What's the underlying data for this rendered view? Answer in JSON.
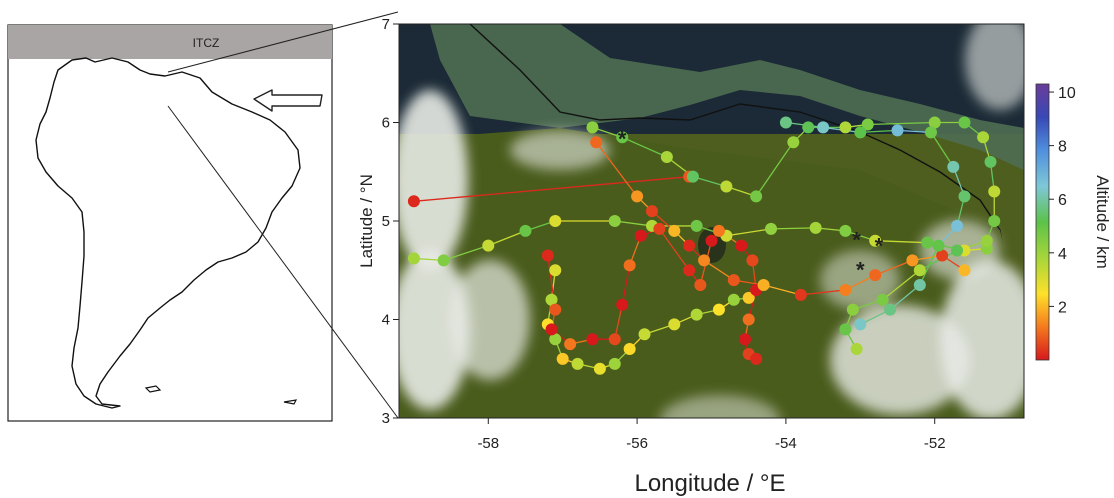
{
  "inset": {
    "band_label": "ITCZ",
    "band_color": "#aaa5a5"
  },
  "map": {
    "x_ticks": [
      {
        "value": -58,
        "label": "-58"
      },
      {
        "value": -56,
        "label": "-56"
      },
      {
        "value": -54,
        "label": "-54"
      },
      {
        "value": -52,
        "label": "-52"
      }
    ],
    "y_ticks": [
      {
        "value": 3,
        "label": "3"
      },
      {
        "value": 4,
        "label": "4"
      },
      {
        "value": 5,
        "label": "5"
      },
      {
        "value": 6,
        "label": "6"
      },
      {
        "value": 7,
        "label": "7"
      }
    ],
    "xlim": [
      -59.2,
      -50.8
    ],
    "ylim": [
      3.0,
      7.0
    ],
    "xlabel": "Longitude / °E",
    "ylabel": "Latitude / °N"
  },
  "colorbar": {
    "label": "Altitude / km",
    "ticks": [
      {
        "value": 2,
        "label": "2"
      },
      {
        "value": 4,
        "label": "4"
      },
      {
        "value": 6,
        "label": "6"
      },
      {
        "value": 8,
        "label": "8"
      },
      {
        "value": 10,
        "label": "10"
      }
    ],
    "range": [
      0,
      10.3
    ],
    "colors": [
      "#d7191c",
      "#f57a1e",
      "#fde02a",
      "#a6d63a",
      "#5cc24a",
      "#7fc7d8",
      "#4f8fdd",
      "#3848b5",
      "#6a3d9a"
    ]
  },
  "chart_data": {
    "type": "scatter",
    "tracks": [
      {
        "points": [
          [
            -59.0,
            5.2
          ],
          [
            -55.3,
            5.45
          ]
        ]
      },
      {
        "points": [
          [
            -59.0,
            4.62
          ],
          [
            -58.6,
            4.6
          ],
          [
            -58.0,
            4.75
          ],
          [
            -57.5,
            4.9
          ],
          [
            -57.1,
            5.0
          ],
          [
            -56.3,
            5.0
          ],
          [
            -55.8,
            4.95
          ],
          [
            -55.2,
            4.95
          ],
          [
            -54.8,
            4.85
          ],
          [
            -54.2,
            4.92
          ],
          [
            -53.6,
            4.93
          ],
          [
            -53.2,
            4.9
          ],
          [
            -52.8,
            4.8
          ],
          [
            -52.1,
            4.78
          ],
          [
            -51.6,
            4.7
          ],
          [
            -51.3,
            4.72
          ]
        ]
      },
      {
        "points": [
          [
            -57.1,
            4.5
          ],
          [
            -57.15,
            4.2
          ],
          [
            -57.2,
            3.95
          ],
          [
            -57.1,
            3.8
          ],
          [
            -57.0,
            3.6
          ],
          [
            -56.8,
            3.55
          ],
          [
            -56.5,
            3.5
          ],
          [
            -56.3,
            3.55
          ],
          [
            -56.1,
            3.7
          ],
          [
            -55.9,
            3.85
          ],
          [
            -55.5,
            3.95
          ],
          [
            -55.2,
            4.05
          ],
          [
            -54.9,
            4.1
          ],
          [
            -54.7,
            4.2
          ],
          [
            -54.5,
            4.22
          ]
        ]
      },
      {
        "points": [
          [
            -57.2,
            4.65
          ],
          [
            -57.1,
            4.1
          ],
          [
            -57.15,
            3.9
          ],
          [
            -56.9,
            3.75
          ],
          [
            -56.6,
            3.8
          ],
          [
            -56.3,
            3.8
          ],
          [
            -56.2,
            4.15
          ],
          [
            -56.1,
            4.55
          ],
          [
            -55.95,
            4.85
          ],
          [
            -55.7,
            4.92
          ],
          [
            -55.3,
            4.5
          ],
          [
            -55.15,
            4.35
          ],
          [
            -55.0,
            4.8
          ],
          [
            -54.9,
            4.9
          ],
          [
            -54.6,
            4.75
          ],
          [
            -54.45,
            4.6
          ],
          [
            -54.4,
            4.3
          ],
          [
            -54.5,
            4.0
          ],
          [
            -54.55,
            3.8
          ],
          [
            -54.5,
            3.65
          ],
          [
            -54.4,
            3.6
          ]
        ]
      },
      {
        "points": [
          [
            -56.6,
            5.95
          ],
          [
            -56.2,
            5.85
          ],
          [
            -55.6,
            5.65
          ],
          [
            -55.25,
            5.45
          ],
          [
            -54.8,
            5.35
          ],
          [
            -54.4,
            5.25
          ],
          [
            -53.9,
            5.8
          ],
          [
            -53.7,
            5.95
          ],
          [
            -53.2,
            5.95
          ],
          [
            -52.9,
            5.98
          ],
          [
            -52.0,
            6.0
          ],
          [
            -51.6,
            6.0
          ],
          [
            -51.35,
            5.85
          ],
          [
            -51.25,
            5.6
          ],
          [
            -51.2,
            5.3
          ],
          [
            -51.2,
            5.0
          ],
          [
            -51.3,
            4.8
          ],
          [
            -51.7,
            4.7
          ],
          [
            -52.2,
            4.5
          ],
          [
            -52.7,
            4.2
          ],
          [
            -53.1,
            4.1
          ],
          [
            -53.2,
            3.9
          ],
          [
            -53.05,
            3.7
          ]
        ]
      },
      {
        "points": [
          [
            -56.55,
            5.8
          ],
          [
            -56.0,
            5.25
          ],
          [
            -55.8,
            5.1
          ],
          [
            -55.5,
            4.9
          ],
          [
            -55.3,
            4.75
          ],
          [
            -55.1,
            4.6
          ],
          [
            -54.7,
            4.4
          ],
          [
            -54.3,
            4.35
          ],
          [
            -53.8,
            4.25
          ],
          [
            -53.2,
            4.3
          ],
          [
            -52.8,
            4.45
          ],
          [
            -52.3,
            4.6
          ],
          [
            -51.9,
            4.65
          ],
          [
            -51.6,
            4.5
          ]
        ]
      },
      {
        "points": [
          [
            -54.0,
            6.0
          ],
          [
            -53.5,
            5.95
          ],
          [
            -53.0,
            5.9
          ],
          [
            -52.5,
            5.92
          ],
          [
            -52.05,
            5.9
          ],
          [
            -51.75,
            5.55
          ],
          [
            -51.6,
            5.25
          ],
          [
            -51.7,
            4.95
          ],
          [
            -51.95,
            4.75
          ],
          [
            -52.2,
            4.35
          ],
          [
            -52.6,
            4.1
          ],
          [
            -53.0,
            3.95
          ]
        ]
      }
    ],
    "markers": [
      {
        "lon": -56.2,
        "lat": 5.85,
        "label": "*"
      },
      {
        "lon": -53.05,
        "lat": 4.82,
        "label": "*"
      },
      {
        "lon": -52.75,
        "lat": 4.76,
        "label": "*"
      },
      {
        "lon": -53.0,
        "lat": 4.52,
        "label": "*"
      }
    ]
  }
}
